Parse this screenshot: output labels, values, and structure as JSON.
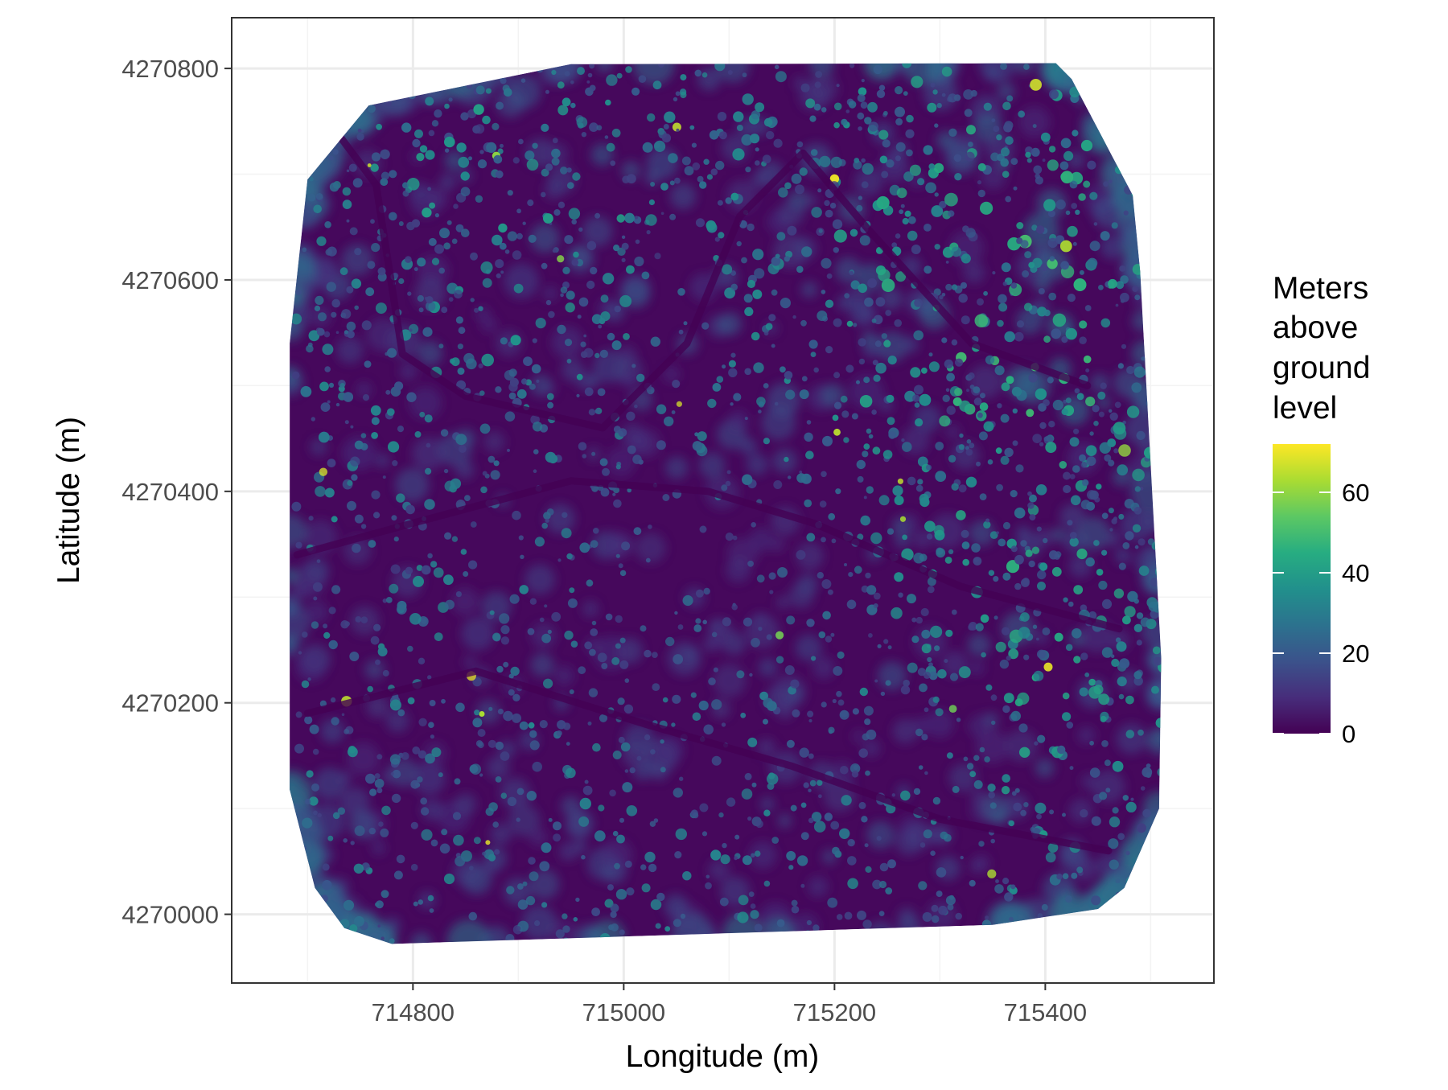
{
  "chart_data": {
    "type": "heatmap",
    "title": "",
    "xlabel": "Longitude (m)",
    "ylabel": "Latitude (m)",
    "x_ticks": [
      714800,
      715000,
      715200,
      715400
    ],
    "y_ticks": [
      4270000,
      4270200,
      4270400,
      4270600,
      4270800
    ],
    "x_tick_labels": [
      "714800",
      "715000",
      "715200",
      "715400"
    ],
    "y_tick_labels": [
      "4270000",
      "4270200",
      "4270400",
      "4270600",
      "4270800"
    ],
    "xlim": [
      714628,
      715560
    ],
    "ylim": [
      4269935,
      4270848
    ],
    "grid": true,
    "colorscale": "viridis",
    "value_range": [
      0,
      72
    ],
    "legend": {
      "title_lines": [
        "Meters",
        "above",
        "ground",
        "level"
      ],
      "ticks": [
        0,
        20,
        40,
        60
      ],
      "tick_labels": [
        "0",
        "20",
        "40",
        "60"
      ],
      "placement": "right"
    },
    "colors": {
      "viridis_low": "#440154",
      "viridis_mid": "#21908c",
      "viridis_high": "#fde725",
      "grid": "#ebebeb",
      "panel_border": "#333333"
    },
    "extent_polygon": [
      {
        "x": 714700,
        "y": 4270695
      },
      {
        "x": 714758,
        "y": 4270765
      },
      {
        "x": 714950,
        "y": 4270804
      },
      {
        "x": 715410,
        "y": 4270805
      },
      {
        "x": 715425,
        "y": 4270790
      },
      {
        "x": 715483,
        "y": 4270680
      },
      {
        "x": 715490,
        "y": 4270608
      },
      {
        "x": 715510,
        "y": 4270242
      },
      {
        "x": 715508,
        "y": 4270100
      },
      {
        "x": 715475,
        "y": 4270025
      },
      {
        "x": 715450,
        "y": 4270005
      },
      {
        "x": 715350,
        "y": 4269990
      },
      {
        "x": 714780,
        "y": 4269972
      },
      {
        "x": 714735,
        "y": 4269987
      },
      {
        "x": 714707,
        "y": 4270025
      },
      {
        "x": 714683,
        "y": 4270118
      },
      {
        "x": 714683,
        "y": 4270540
      }
    ],
    "clearings": [
      {
        "points": [
          {
            "x": 714720,
            "y": 4270750
          },
          {
            "x": 714765,
            "y": 4270690
          },
          {
            "x": 714790,
            "y": 4270530
          },
          {
            "x": 714850,
            "y": 4270490
          },
          {
            "x": 714980,
            "y": 4270460
          },
          {
            "x": 715060,
            "y": 4270540
          },
          {
            "x": 715110,
            "y": 4270660
          },
          {
            "x": 715170,
            "y": 4270720
          },
          {
            "x": 715230,
            "y": 4270650
          },
          {
            "x": 715330,
            "y": 4270540
          },
          {
            "x": 715440,
            "y": 4270500
          }
        ]
      },
      {
        "points": [
          {
            "x": 714690,
            "y": 4270340
          },
          {
            "x": 714800,
            "y": 4270370
          },
          {
            "x": 714950,
            "y": 4270410
          },
          {
            "x": 715080,
            "y": 4270400
          },
          {
            "x": 715180,
            "y": 4270370
          },
          {
            "x": 715320,
            "y": 4270310
          },
          {
            "x": 715470,
            "y": 4270270
          }
        ]
      },
      {
        "points": [
          {
            "x": 714700,
            "y": 4270190
          },
          {
            "x": 714860,
            "y": 4270230
          },
          {
            "x": 715020,
            "y": 4270180
          },
          {
            "x": 715160,
            "y": 4270140
          },
          {
            "x": 715300,
            "y": 4270090
          },
          {
            "x": 715460,
            "y": 4270060
          }
        ]
      }
    ],
    "canopy_summary": "tree crowns up to ~70 m above ground; dense canopy in north-east and east, sparse in centre"
  }
}
